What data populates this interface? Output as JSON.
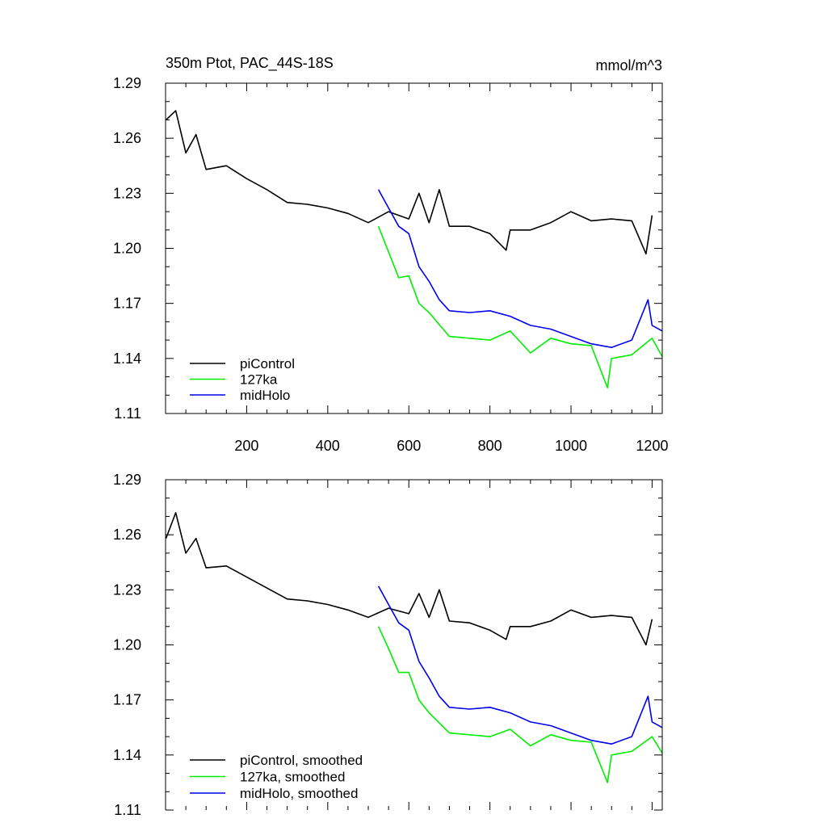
{
  "chart_data": [
    {
      "type": "line",
      "title": "350m Ptot, PAC_44S-18S",
      "units": "mmol/m^3",
      "xlim": [
        0,
        1225
      ],
      "ylim": [
        1.11,
        1.29
      ],
      "x_ticks": [
        200,
        400,
        600,
        800,
        1000,
        1200
      ],
      "x_tick_labels": [
        "200",
        "400",
        "600",
        "800",
        "1000",
        "1200"
      ],
      "y_ticks": [
        1.11,
        1.14,
        1.17,
        1.2,
        1.23,
        1.26,
        1.29
      ],
      "y_tick_labels": [
        "1.11",
        "1.14",
        "1.17",
        "1.20",
        "1.23",
        "1.26",
        "1.29"
      ],
      "legend_position": "bottom-left",
      "series": [
        {
          "name": "piControl",
          "color": "#000000",
          "x": [
            1,
            25,
            50,
            75,
            100,
            150,
            200,
            250,
            300,
            350,
            400,
            450,
            500,
            550,
            600,
            625,
            650,
            675,
            700,
            750,
            800,
            840,
            850,
            900,
            950,
            1000,
            1050,
            1100,
            1150,
            1185,
            1200
          ],
          "y": [
            1.27,
            1.275,
            1.252,
            1.262,
            1.243,
            1.245,
            1.238,
            1.232,
            1.225,
            1.224,
            1.222,
            1.219,
            1.214,
            1.22,
            1.216,
            1.23,
            1.214,
            1.232,
            1.212,
            1.212,
            1.208,
            1.199,
            1.21,
            1.21,
            1.214,
            1.22,
            1.215,
            1.216,
            1.215,
            1.197,
            1.218
          ]
        },
        {
          "name": "127ka",
          "color": "#00ee00",
          "x": [
            525,
            550,
            575,
            600,
            625,
            650,
            700,
            750,
            800,
            850,
            900,
            950,
            1000,
            1050,
            1090,
            1100,
            1150,
            1200,
            1225
          ],
          "y": [
            1.212,
            1.198,
            1.184,
            1.185,
            1.17,
            1.165,
            1.152,
            1.151,
            1.15,
            1.155,
            1.143,
            1.151,
            1.148,
            1.147,
            1.124,
            1.14,
            1.142,
            1.151,
            1.141
          ]
        },
        {
          "name": "midHolo",
          "color": "#0000ee",
          "x": [
            525,
            550,
            575,
            600,
            625,
            650,
            675,
            700,
            750,
            800,
            850,
            900,
            950,
            1000,
            1050,
            1100,
            1150,
            1190,
            1200,
            1225
          ],
          "y": [
            1.232,
            1.222,
            1.212,
            1.208,
            1.19,
            1.182,
            1.172,
            1.166,
            1.165,
            1.166,
            1.163,
            1.158,
            1.156,
            1.152,
            1.148,
            1.146,
            1.15,
            1.172,
            1.158,
            1.155
          ]
        }
      ]
    },
    {
      "type": "line",
      "xlim": [
        0,
        1225
      ],
      "ylim": [
        1.11,
        1.29
      ],
      "y_ticks": [
        1.11,
        1.14,
        1.17,
        1.2,
        1.23,
        1.26,
        1.29
      ],
      "y_tick_labels": [
        "1.11",
        "1.14",
        "1.17",
        "1.20",
        "1.23",
        "1.26",
        "1.29"
      ],
      "legend_position": "bottom-left",
      "series": [
        {
          "name": "piControl, smoothed",
          "color": "#000000",
          "x": [
            1,
            25,
            50,
            75,
            100,
            150,
            200,
            250,
            300,
            350,
            400,
            450,
            500,
            550,
            600,
            625,
            650,
            675,
            700,
            750,
            800,
            840,
            850,
            900,
            950,
            1000,
            1050,
            1100,
            1150,
            1185,
            1200
          ],
          "y": [
            1.258,
            1.272,
            1.25,
            1.258,
            1.242,
            1.243,
            1.237,
            1.231,
            1.225,
            1.224,
            1.222,
            1.219,
            1.215,
            1.22,
            1.217,
            1.228,
            1.215,
            1.23,
            1.213,
            1.212,
            1.208,
            1.203,
            1.21,
            1.21,
            1.213,
            1.219,
            1.215,
            1.216,
            1.215,
            1.2,
            1.214
          ]
        },
        {
          "name": "127ka, smoothed",
          "color": "#00ee00",
          "x": [
            525,
            550,
            575,
            600,
            625,
            650,
            700,
            750,
            800,
            850,
            900,
            950,
            1000,
            1050,
            1090,
            1100,
            1150,
            1200,
            1225
          ],
          "y": [
            1.21,
            1.198,
            1.185,
            1.185,
            1.17,
            1.163,
            1.152,
            1.151,
            1.15,
            1.154,
            1.145,
            1.151,
            1.148,
            1.147,
            1.125,
            1.14,
            1.142,
            1.15,
            1.141
          ]
        },
        {
          "name": "midHolo, smoothed",
          "color": "#0000ee",
          "x": [
            525,
            550,
            575,
            600,
            625,
            650,
            675,
            700,
            750,
            800,
            850,
            900,
            950,
            1000,
            1050,
            1100,
            1150,
            1190,
            1200,
            1225
          ],
          "y": [
            1.232,
            1.222,
            1.212,
            1.208,
            1.191,
            1.182,
            1.172,
            1.166,
            1.165,
            1.166,
            1.163,
            1.158,
            1.156,
            1.152,
            1.148,
            1.146,
            1.15,
            1.172,
            1.158,
            1.155
          ]
        }
      ]
    }
  ]
}
